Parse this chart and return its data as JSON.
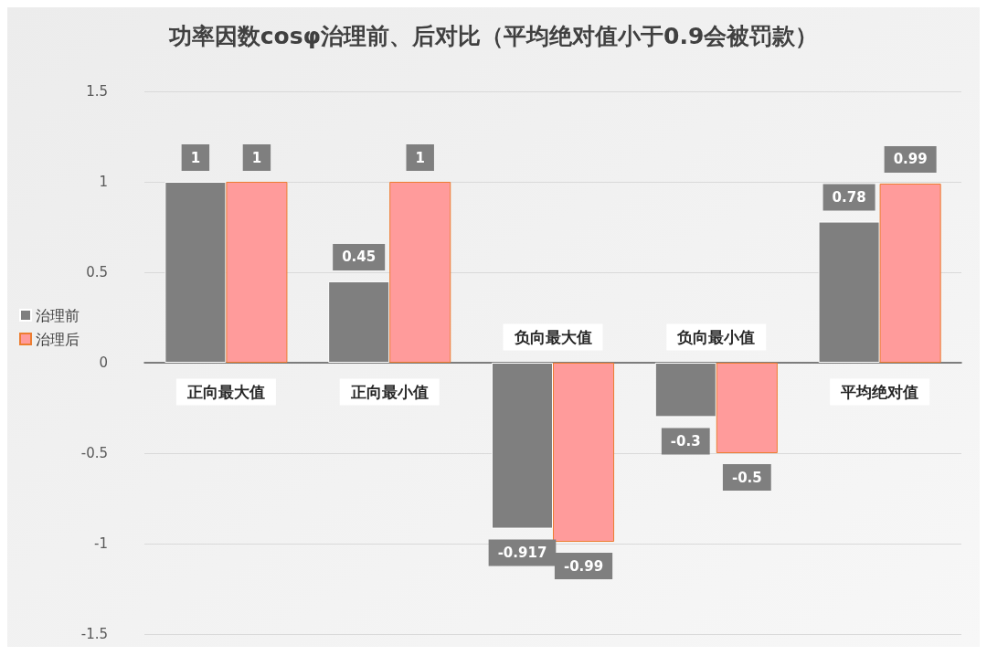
{
  "chart_data": {
    "type": "bar",
    "title": "功率因数cosφ治理前、后对比（平均绝对值小于0.9会被罚款）",
    "categories": [
      "正向最大值",
      "正向最小值",
      "负向最大值",
      "负向最小值",
      "平均绝对值"
    ],
    "series": [
      {
        "name": "治理前",
        "color": "#7f7f7f",
        "values": [
          1,
          0.45,
          -0.917,
          -0.3,
          0.78
        ]
      },
      {
        "name": "治理后",
        "color": "#ff9b9b",
        "values": [
          1,
          1,
          -0.99,
          -0.5,
          0.99
        ]
      }
    ],
    "ylim": [
      -1.5,
      1.5
    ],
    "yticks": [
      -1.5,
      -1,
      -0.5,
      0,
      0.5,
      1,
      1.5
    ],
    "grid": "y",
    "legend": "left",
    "data_labels": true
  }
}
